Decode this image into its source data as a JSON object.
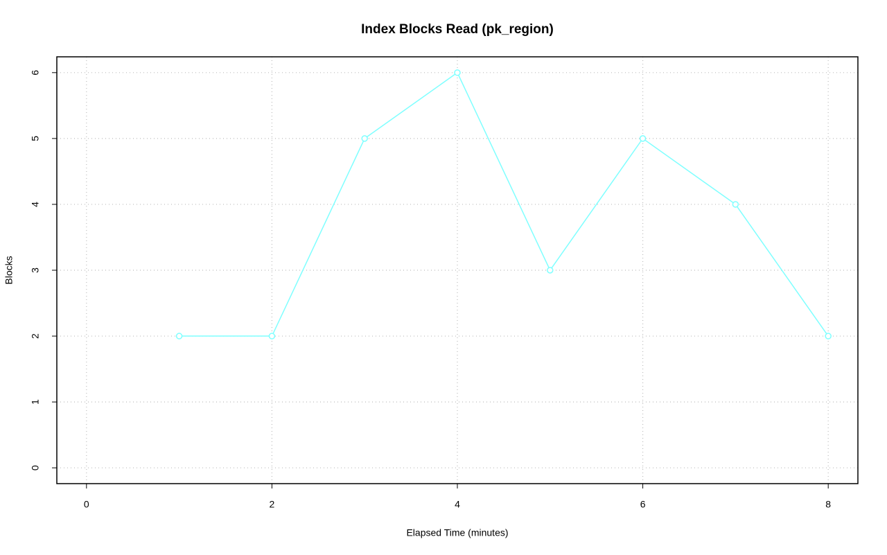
{
  "chart_data": {
    "type": "line",
    "title": "Index Blocks Read (pk_region)",
    "x_label": "Elapsed Time (minutes)",
    "y_label": "Blocks",
    "x": [
      1,
      2,
      3,
      4,
      5,
      6,
      7,
      8
    ],
    "series": [
      {
        "name": "pk_region",
        "color": "#7fffff",
        "values": [
          2,
          2,
          5,
          6,
          3,
          5,
          4,
          2
        ]
      }
    ],
    "xlim": [
      -0.32,
      8.32
    ],
    "xticks": [
      0,
      2,
      4,
      6,
      8
    ],
    "ylim": [
      -0.24,
      6.24
    ],
    "yticks": [
      0,
      1,
      2,
      3,
      4,
      5,
      6
    ],
    "grid": true
  }
}
